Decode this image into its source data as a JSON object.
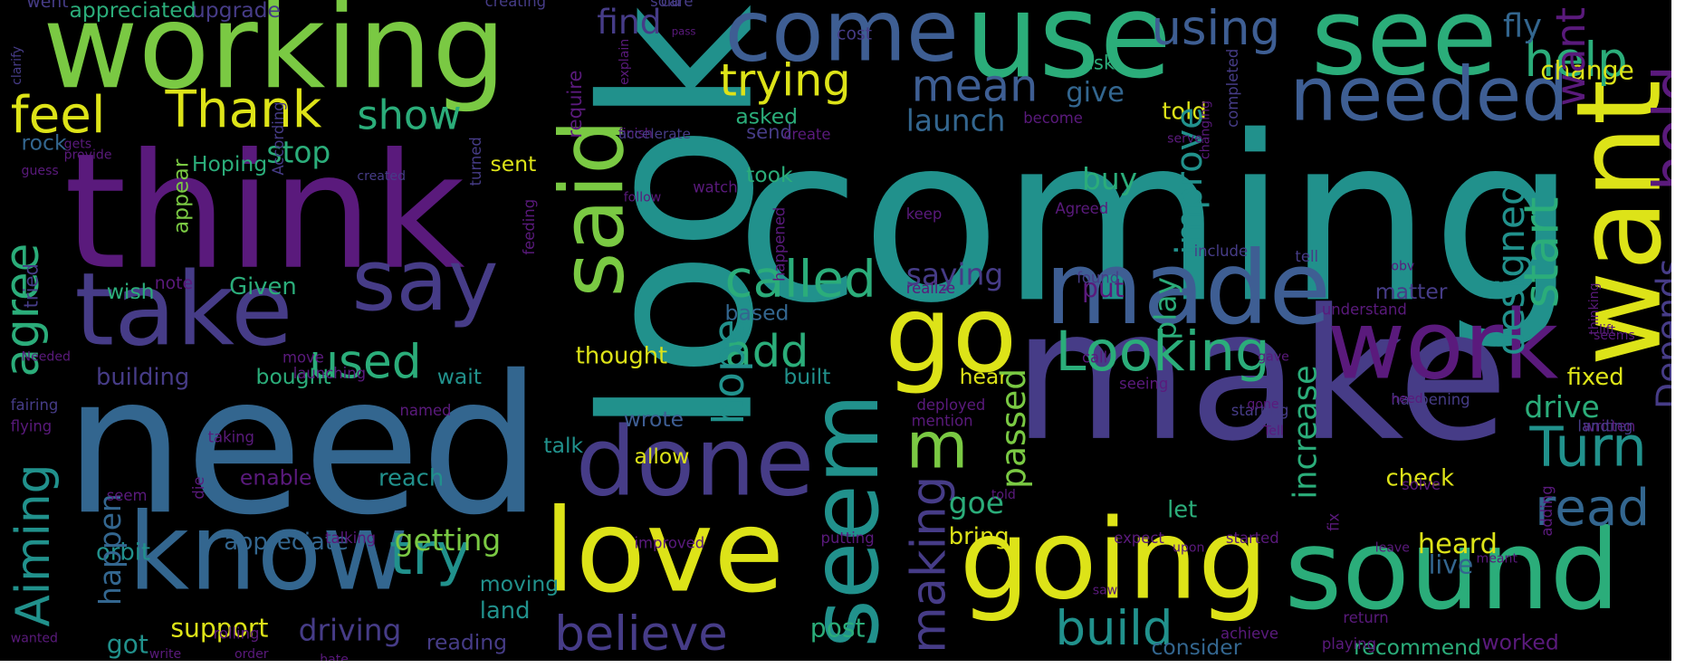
{
  "image": {
    "background": "#000000",
    "frame": "#ffffff"
  },
  "palette": {
    "purple": "#5a1a7c",
    "violet": "#463c87",
    "blue": "#3e5e93",
    "steel": "#33668f",
    "teal": "#21918c",
    "green": "#2bad7a",
    "lime": "#7ac943",
    "yellow": "#dde318"
  },
  "words": [
    {
      "text": "coming",
      "color": "teal"
    },
    {
      "text": "look",
      "color": "teal"
    },
    {
      "text": "make",
      "color": "violet"
    },
    {
      "text": "need",
      "color": "steel"
    },
    {
      "text": "think",
      "color": "purple"
    },
    {
      "text": "working",
      "color": "lime"
    },
    {
      "text": "use",
      "color": "green"
    },
    {
      "text": "see",
      "color": "green"
    },
    {
      "text": "come",
      "color": "blue"
    },
    {
      "text": "want",
      "color": "yellow"
    },
    {
      "text": "know",
      "color": "steel"
    },
    {
      "text": "love",
      "color": "yellow"
    },
    {
      "text": "going",
      "color": "yellow"
    },
    {
      "text": "sound",
      "color": "green"
    },
    {
      "text": "take",
      "color": "violet"
    },
    {
      "text": "go",
      "color": "yellow"
    },
    {
      "text": "made",
      "color": "blue"
    },
    {
      "text": "work",
      "color": "purple"
    },
    {
      "text": "seem",
      "color": "teal"
    },
    {
      "text": "done",
      "color": "violet"
    },
    {
      "text": "say",
      "color": "violet"
    },
    {
      "text": "said",
      "color": "lime"
    },
    {
      "text": "needed",
      "color": "blue"
    },
    {
      "text": "feel",
      "color": "yellow"
    },
    {
      "text": "Thank",
      "color": "yellow"
    },
    {
      "text": "agree",
      "color": "green"
    },
    {
      "text": "Looking",
      "color": "green"
    },
    {
      "text": "m",
      "color": "lime"
    },
    {
      "text": "Aiming",
      "color": "teal"
    },
    {
      "text": "try",
      "color": "teal"
    },
    {
      "text": "believe",
      "color": "violet"
    },
    {
      "text": "build",
      "color": "teal"
    },
    {
      "text": "trying",
      "color": "yellow"
    },
    {
      "text": "mean",
      "color": "blue"
    },
    {
      "text": "using",
      "color": "blue"
    },
    {
      "text": "help",
      "color": "green"
    },
    {
      "text": "called",
      "color": "green"
    },
    {
      "text": "Turn",
      "color": "teal"
    },
    {
      "text": "read",
      "color": "steel"
    },
    {
      "text": "used",
      "color": "green"
    },
    {
      "text": "add",
      "color": "green"
    },
    {
      "text": "hope",
      "color": "teal"
    },
    {
      "text": "making",
      "color": "violet"
    },
    {
      "text": "show",
      "color": "green"
    },
    {
      "text": "start",
      "color": "green"
    },
    {
      "text": "Depends",
      "color": "violet"
    },
    {
      "text": "hold",
      "color": "purple"
    },
    {
      "text": "fly",
      "color": "steel"
    },
    {
      "text": "change",
      "color": "yellow"
    },
    {
      "text": "upgrade",
      "color": "violet"
    },
    {
      "text": "appreciated",
      "color": "green"
    },
    {
      "text": "want",
      "color": "purple"
    },
    {
      "text": "find",
      "color": "violet"
    },
    {
      "text": "launch",
      "color": "steel"
    },
    {
      "text": "give",
      "color": "steel"
    },
    {
      "text": "told",
      "color": "yellow"
    },
    {
      "text": "asked",
      "color": "green"
    },
    {
      "text": "stop",
      "color": "green"
    },
    {
      "text": "Hoping",
      "color": "green"
    },
    {
      "text": "sent",
      "color": "yellow"
    },
    {
      "text": "took",
      "color": "green"
    },
    {
      "text": "buy",
      "color": "green"
    },
    {
      "text": "improve",
      "color": "teal"
    },
    {
      "text": "saying",
      "color": "violet"
    },
    {
      "text": "designed",
      "color": "teal"
    },
    {
      "text": "put",
      "color": "purple"
    },
    {
      "text": "play",
      "color": "green"
    },
    {
      "text": "based",
      "color": "steel"
    },
    {
      "text": "matter",
      "color": "violet"
    },
    {
      "text": "fixed",
      "color": "yellow"
    },
    {
      "text": "thought",
      "color": "yellow"
    },
    {
      "text": "building",
      "color": "violet"
    },
    {
      "text": "bought",
      "color": "green"
    },
    {
      "text": "wait",
      "color": "teal"
    },
    {
      "text": "built",
      "color": "teal"
    },
    {
      "text": "hear",
      "color": "yellow"
    },
    {
      "text": "drive",
      "color": "green"
    },
    {
      "text": "wrote",
      "color": "blue"
    },
    {
      "text": "allow",
      "color": "yellow"
    },
    {
      "text": "passed",
      "color": "lime"
    },
    {
      "text": "increase",
      "color": "green"
    },
    {
      "text": "check",
      "color": "yellow"
    },
    {
      "text": "enable",
      "color": "purple"
    },
    {
      "text": "reach",
      "color": "teal"
    },
    {
      "text": "talk",
      "color": "teal"
    },
    {
      "text": "goe",
      "color": "green"
    },
    {
      "text": "let",
      "color": "green"
    },
    {
      "text": "heard",
      "color": "yellow"
    },
    {
      "text": "orbit",
      "color": "teal"
    },
    {
      "text": "appreciate",
      "color": "steel"
    },
    {
      "text": "getting",
      "color": "lime"
    },
    {
      "text": "bring",
      "color": "yellow"
    },
    {
      "text": "happen",
      "color": "steel"
    },
    {
      "text": "got",
      "color": "teal"
    },
    {
      "text": "support",
      "color": "yellow"
    },
    {
      "text": "driving",
      "color": "violet"
    },
    {
      "text": "post",
      "color": "green"
    },
    {
      "text": "consider",
      "color": "steel"
    },
    {
      "text": "recommend",
      "color": "green"
    },
    {
      "text": "worked",
      "color": "purple"
    },
    {
      "text": "moving",
      "color": "teal"
    },
    {
      "text": "land",
      "color": "teal"
    },
    {
      "text": "reading",
      "color": "violet"
    },
    {
      "text": "live",
      "color": "steel"
    },
    {
      "text": "rock",
      "color": "steel"
    },
    {
      "text": "wish",
      "color": "green"
    },
    {
      "text": "Given",
      "color": "green"
    },
    {
      "text": "tried",
      "color": "violet"
    },
    {
      "text": "appear",
      "color": "lime"
    },
    {
      "text": "note",
      "color": "purple"
    },
    {
      "text": "send",
      "color": "violet"
    },
    {
      "text": "require",
      "color": "purple"
    },
    {
      "text": "ask",
      "color": "green"
    },
    {
      "text": "cost",
      "color": "violet"
    },
    {
      "text": "went",
      "color": "violet"
    },
    {
      "text": "creating",
      "color": "violet"
    },
    {
      "text": "clarify",
      "color": "violet"
    },
    {
      "text": "sold",
      "color": "violet"
    },
    {
      "text": "care",
      "color": "violet"
    },
    {
      "text": "explain",
      "color": "purple"
    },
    {
      "text": "pass",
      "color": "purple"
    },
    {
      "text": "finish",
      "color": "purple"
    },
    {
      "text": "accelerate",
      "color": "violet"
    },
    {
      "text": "create",
      "color": "purple"
    },
    {
      "text": "become",
      "color": "purple"
    },
    {
      "text": "completed",
      "color": "violet"
    },
    {
      "text": "follow",
      "color": "purple"
    },
    {
      "text": "watch",
      "color": "purple"
    },
    {
      "text": "happened",
      "color": "purple"
    },
    {
      "text": "keep",
      "color": "purple"
    },
    {
      "text": "Agreed",
      "color": "purple"
    },
    {
      "text": "include",
      "color": "violet"
    },
    {
      "text": "tell",
      "color": "violet"
    },
    {
      "text": "realize",
      "color": "purple"
    },
    {
      "text": "found",
      "color": "violet"
    },
    {
      "text": "understand",
      "color": "purple"
    },
    {
      "text": "call",
      "color": "purple"
    },
    {
      "text": "seeing",
      "color": "purple"
    },
    {
      "text": "starting",
      "color": "violet"
    },
    {
      "text": "happening",
      "color": "violet"
    },
    {
      "text": "written",
      "color": "purple"
    },
    {
      "text": "landing",
      "color": "violet"
    },
    {
      "text": "solve",
      "color": "purple"
    },
    {
      "text": "fix",
      "color": "purple"
    },
    {
      "text": "expect",
      "color": "purple"
    },
    {
      "text": "started",
      "color": "purple"
    },
    {
      "text": "adding",
      "color": "purple"
    },
    {
      "text": "playing",
      "color": "purple"
    },
    {
      "text": "return",
      "color": "purple"
    },
    {
      "text": "achieve",
      "color": "purple"
    },
    {
      "text": "putting",
      "color": "purple"
    },
    {
      "text": "rolling",
      "color": "purple"
    },
    {
      "text": "order",
      "color": "purple"
    },
    {
      "text": "wanted",
      "color": "purple"
    },
    {
      "text": "write",
      "color": "purple"
    },
    {
      "text": "flying",
      "color": "purple"
    },
    {
      "text": "fairing",
      "color": "violet"
    },
    {
      "text": "launching",
      "color": "purple"
    },
    {
      "text": "According",
      "color": "violet"
    },
    {
      "text": "created",
      "color": "violet"
    },
    {
      "text": "turned",
      "color": "violet"
    },
    {
      "text": "provide",
      "color": "purple"
    },
    {
      "text": "gets",
      "color": "purple"
    },
    {
      "text": "feeding",
      "color": "purple"
    },
    {
      "text": "taking",
      "color": "purple"
    },
    {
      "text": "mention",
      "color": "purple"
    },
    {
      "text": "deployed",
      "color": "purple"
    },
    {
      "text": "named",
      "color": "purple"
    },
    {
      "text": "move",
      "color": "purple"
    },
    {
      "text": "seem",
      "color": "purple"
    },
    {
      "text": "die",
      "color": "purple"
    },
    {
      "text": "improved",
      "color": "purple"
    },
    {
      "text": "talking",
      "color": "purple"
    },
    {
      "text": "guess",
      "color": "purple"
    },
    {
      "text": "hate",
      "color": "purple"
    },
    {
      "text": "upon",
      "color": "purple"
    },
    {
      "text": "leave",
      "color": "purple"
    },
    {
      "text": "meant",
      "color": "purple"
    },
    {
      "text": "saw",
      "color": "purple"
    },
    {
      "text": "Needed",
      "color": "purple"
    },
    {
      "text": "changing",
      "color": "purple"
    },
    {
      "text": "obv",
      "color": "purple"
    },
    {
      "text": "thinking",
      "color": "purple"
    },
    {
      "text": "seems",
      "color": "purple"
    },
    {
      "text": "lift",
      "color": "purple"
    },
    {
      "text": "gone",
      "color": "purple"
    },
    {
      "text": "gave",
      "color": "purple"
    },
    {
      "text": "Tell",
      "color": "purple"
    },
    {
      "text": "told",
      "color": "purple"
    },
    {
      "text": "need",
      "color": "purple"
    },
    {
      "text": "serve",
      "color": "purple"
    }
  ]
}
